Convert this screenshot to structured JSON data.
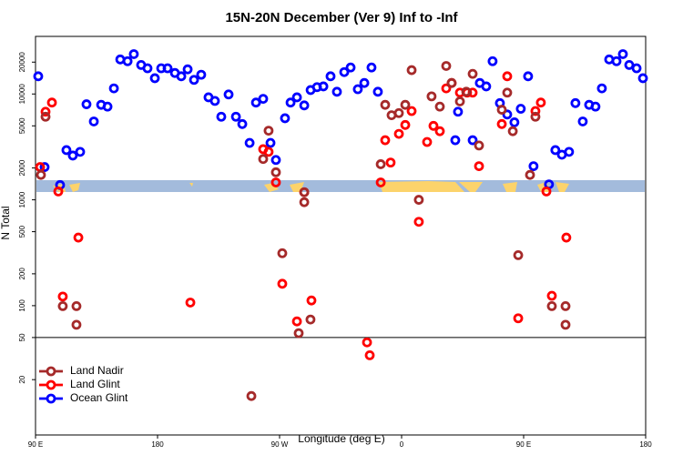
{
  "chart_data": {
    "type": "scatter",
    "title": "15N-20N December (Ver 9)   Inf to -Inf",
    "x_label": "Longitude (deg E)",
    "y_label": "N Total",
    "xlim": [
      90,
      540
    ],
    "xticks": [
      {
        "value": 90,
        "label": "90 E"
      },
      180,
      {
        "value": 270,
        "label": "90 W"
      },
      {
        "value": 360,
        "label": "0"
      },
      {
        "value": 450,
        "label": "90 E"
      },
      {
        "value": 540,
        "label": "180"
      }
    ],
    "ylim": [
      6,
      35000
    ],
    "yticks": [
      20,
      50,
      100,
      200,
      500,
      1000,
      2000,
      5000,
      10000,
      20000
    ],
    "y_log": true,
    "reference_line": 50,
    "legend": "lower left",
    "series": [
      {
        "name": "Land Nadir",
        "color": "#a52a2a",
        "x": [
          94.0,
          97.4,
          110.1,
          120.2,
          120.2,
          261.9,
          257.9,
          267.3,
          272.0,
          288.2,
          288.2,
          292.8,
          284.1,
          249.2,
          344.6,
          347.9,
          352.6,
          358.0,
          362.7,
          367.4,
          372.7,
          382.1,
          388.2,
          392.9,
          396.9,
          403.0,
          407.7,
          412.4,
          417.1,
          433.9,
          437.9,
          442.0,
          446.0,
          454.7,
          458.7,
          470.8,
          480.9,
          480.9
        ],
        "values": [
          1720,
          6100,
          99,
          99,
          66,
          4500,
          2430,
          1820,
          313,
          1180,
          950,
          74,
          55,
          14,
          2170,
          7900,
          6300,
          6600,
          7900,
          16800,
          1000,
          9500,
          7600,
          18400,
          12700,
          8500,
          10500,
          15500,
          3260,
          7100,
          10300,
          4450,
          300,
          1720,
          6100,
          99,
          99,
          66
        ]
      },
      {
        "name": "Land Glint",
        "color": "#ff0000",
        "x": [
          93.4,
          97.4,
          102.1,
          106.8,
          110.1,
          121.6,
          204.2,
          257.9,
          261.9,
          267.3,
          272.0,
          282.8,
          288.2,
          293.5,
          334.5,
          336.5,
          344.6,
          347.9,
          351.9,
          358.0,
          362.7,
          367.4,
          372.7,
          378.8,
          383.5,
          388.2,
          392.9,
          396.9,
          403.0,
          408.3,
          412.4,
          417.1,
          433.9,
          437.9,
          446.0,
          458.7,
          462.7,
          466.8,
          470.8,
          481.5
        ],
        "values": [
          2040,
          6800,
          8300,
          1200,
          122,
          440,
          107,
          3010,
          2840,
          1460,
          161,
          71,
          1180,
          112,
          45,
          34,
          1460,
          3660,
          2250,
          4200,
          5100,
          6900,
          620,
          3520,
          5000,
          4450,
          11300,
          12700,
          10300,
          10300,
          10300,
          2080,
          5200,
          14700,
          76,
          6900,
          8300,
          1200,
          124,
          440
        ]
      },
      {
        "name": "Ocean Glint",
        "color": "#0000ff",
        "x": [
          92.0,
          96.7,
          108.1,
          112.8,
          117.5,
          122.9,
          127.6,
          133.0,
          138.4,
          143.1,
          147.8,
          152.5,
          157.9,
          162.5,
          167.9,
          172.6,
          178.0,
          182.7,
          187.4,
          192.8,
          197.5,
          202.2,
          206.9,
          212.2,
          217.6,
          222.3,
          227.0,
          232.4,
          237.8,
          242.5,
          247.9,
          252.6,
          257.9,
          263.3,
          267.3,
          274.0,
          278.1,
          282.8,
          288.2,
          292.9,
          297.6,
          302.3,
          307.6,
          312.3,
          317.7,
          322.4,
          327.7,
          332.5,
          337.8,
          342.5,
          399.6,
          401.6,
          412.4,
          417.7,
          422.4,
          427.1,
          432.5,
          437.9,
          443.2,
          447.9,
          453.3,
          457.3,
          468.7,
          473.4,
          478.2,
          483.5,
          488.2,
          493.6,
          498.3,
          503.0,
          507.7,
          513.1,
          518.5,
          523.2,
          527.9,
          533.3,
          538.0
        ],
        "values": [
          14700,
          2040,
          1380,
          2950,
          2620,
          2840,
          8000,
          5500,
          7900,
          7600,
          11300,
          21200,
          20400,
          23800,
          18800,
          17500,
          14100,
          17500,
          17500,
          15800,
          14700,
          17100,
          13600,
          15200,
          9300,
          8600,
          6100,
          9900,
          6100,
          5200,
          3450,
          8300,
          9000,
          3450,
          2380,
          5900,
          8300,
          9300,
          7800,
          10900,
          11600,
          11800,
          14700,
          10500,
          16100,
          17800,
          11100,
          12700,
          17800,
          10500,
          3660,
          6800,
          3660,
          12700,
          11800,
          20400,
          8200,
          6400,
          5400,
          7250,
          14700,
          2080,
          1400,
          2950,
          2670,
          2840,
          8200,
          5500,
          7900,
          7600,
          11300,
          21200,
          20400,
          23800,
          18800,
          17500,
          14100
        ]
      }
    ]
  }
}
